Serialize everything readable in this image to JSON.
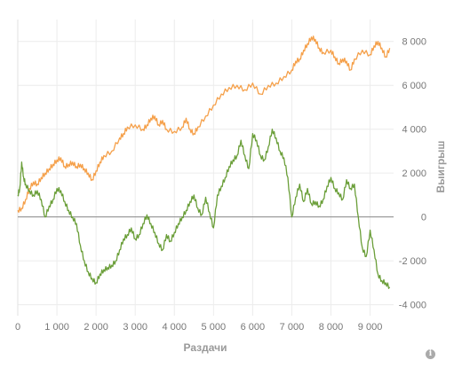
{
  "chart_data": {
    "type": "line",
    "xlabel": "Раздачи",
    "ylabel": "Выигрыш",
    "xlim": [
      0,
      9600
    ],
    "ylim": [
      -4500,
      9000
    ],
    "x_ticks": [
      {
        "value": 0,
        "label": "0"
      },
      {
        "value": 1000,
        "label": "1 000"
      },
      {
        "value": 2000,
        "label": "2 000"
      },
      {
        "value": 3000,
        "label": "3 000"
      },
      {
        "value": 4000,
        "label": "4 000"
      },
      {
        "value": 5000,
        "label": "5 000"
      },
      {
        "value": 6000,
        "label": "6 000"
      },
      {
        "value": 7000,
        "label": "7 000"
      },
      {
        "value": 8000,
        "label": "8 000"
      },
      {
        "value": 9000,
        "label": "9 000"
      }
    ],
    "y_ticks": [
      {
        "value": 8000,
        "label": "8 000"
      },
      {
        "value": 6000,
        "label": "6 000"
      },
      {
        "value": 4000,
        "label": "4 000"
      },
      {
        "value": 2000,
        "label": "2 000"
      },
      {
        "value": 0,
        "label": "0"
      },
      {
        "value": -2000,
        "label": "-2 000"
      },
      {
        "value": -4000,
        "label": "-4 000"
      }
    ],
    "grid": true,
    "legend": "none",
    "series": [
      {
        "color": "#f5a04a",
        "x": [
          0,
          100,
          200,
          300,
          400,
          500,
          600,
          700,
          800,
          900,
          1000,
          1100,
          1200,
          1300,
          1400,
          1500,
          1600,
          1700,
          1800,
          1900,
          2000,
          2100,
          2200,
          2400,
          2600,
          2700,
          2800,
          3000,
          3200,
          3300,
          3400,
          3500,
          3600,
          3700,
          3800,
          4000,
          4200,
          4300,
          4400,
          4500,
          4600,
          4800,
          5000,
          5200,
          5400,
          5600,
          5800,
          6000,
          6200,
          6400,
          6600,
          6800,
          7000,
          7100,
          7200,
          7300,
          7400,
          7500,
          7600,
          7700,
          7800,
          8000,
          8100,
          8200,
          8300,
          8400,
          8500,
          8600,
          8800,
          9000,
          9100,
          9200,
          9300,
          9400,
          9500
        ],
        "y": [
          300,
          400,
          800,
          1300,
          1600,
          1500,
          1800,
          2000,
          2200,
          2400,
          2600,
          2700,
          2300,
          2400,
          2500,
          2300,
          2400,
          2200,
          2000,
          1700,
          2100,
          2500,
          2800,
          3000,
          3600,
          3800,
          4100,
          4200,
          4000,
          4200,
          4500,
          4600,
          4200,
          4400,
          4000,
          3900,
          4100,
          4500,
          4000,
          3800,
          4100,
          4600,
          5100,
          5600,
          5900,
          6000,
          5800,
          6100,
          5600,
          6000,
          6100,
          6400,
          6700,
          7100,
          7200,
          7600,
          7900,
          8200,
          8100,
          7700,
          7500,
          7600,
          7300,
          7000,
          7200,
          7100,
          6700,
          7200,
          7600,
          7400,
          7800,
          8000,
          7700,
          7300,
          7700
        ]
      },
      {
        "color": "#6a9e38",
        "x": [
          0,
          50,
          100,
          150,
          200,
          300,
          400,
          500,
          600,
          700,
          800,
          900,
          1000,
          1100,
          1200,
          1300,
          1400,
          1500,
          1600,
          1700,
          1800,
          1900,
          2000,
          2100,
          2200,
          2300,
          2400,
          2500,
          2600,
          2700,
          2800,
          2900,
          3000,
          3100,
          3200,
          3300,
          3400,
          3500,
          3600,
          3700,
          3800,
          3900,
          4000,
          4100,
          4200,
          4300,
          4400,
          4500,
          4600,
          4700,
          4800,
          4900,
          5000,
          5100,
          5200,
          5300,
          5400,
          5500,
          5600,
          5700,
          5800,
          5900,
          6000,
          6100,
          6200,
          6300,
          6400,
          6500,
          6600,
          6700,
          6800,
          6900,
          7000,
          7100,
          7200,
          7300,
          7400,
          7500,
          7600,
          7700,
          7800,
          7900,
          8000,
          8100,
          8200,
          8300,
          8400,
          8500,
          8600,
          8700,
          8800,
          8900,
          9000,
          9100,
          9200,
          9300,
          9400,
          9500
        ],
        "y": [
          1000,
          1300,
          2500,
          1800,
          1500,
          1200,
          1000,
          1200,
          800,
          0,
          500,
          800,
          1300,
          1200,
          700,
          300,
          0,
          -300,
          -1300,
          -2000,
          -2500,
          -2800,
          -3000,
          -2600,
          -2400,
          -2300,
          -2200,
          -2000,
          -1500,
          -1000,
          -800,
          -500,
          -1000,
          -800,
          -300,
          100,
          -300,
          -700,
          -1200,
          -1500,
          -800,
          -1100,
          -700,
          -300,
          0,
          300,
          700,
          1000,
          400,
          100,
          900,
          200,
          -500,
          1000,
          1400,
          1800,
          2300,
          2600,
          2800,
          3500,
          2800,
          2200,
          3800,
          3500,
          2800,
          2600,
          3200,
          4000,
          3600,
          3000,
          2700,
          1800,
          0,
          900,
          1500,
          700,
          1300,
          600,
          700,
          500,
          800,
          1400,
          1800,
          1300,
          1100,
          800,
          1700,
          1300,
          1500,
          0,
          -1400,
          -1800,
          -600,
          -1500,
          -2600,
          -2900,
          -3000,
          -3200
        ]
      }
    ]
  },
  "info_icon": {
    "glyph": "i"
  }
}
